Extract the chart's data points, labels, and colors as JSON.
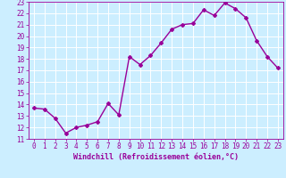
{
  "x": [
    0,
    1,
    2,
    3,
    4,
    5,
    6,
    7,
    8,
    9,
    10,
    11,
    12,
    13,
    14,
    15,
    16,
    17,
    18,
    19,
    20,
    21,
    22,
    23
  ],
  "y": [
    13.7,
    13.6,
    12.8,
    11.5,
    12.0,
    12.2,
    12.5,
    14.1,
    13.1,
    18.2,
    17.5,
    18.3,
    19.4,
    20.6,
    21.0,
    21.1,
    22.3,
    21.8,
    22.9,
    22.4,
    21.6,
    19.6,
    18.2,
    17.2
  ],
  "xlim": [
    -0.5,
    23.5
  ],
  "ylim": [
    11,
    23
  ],
  "yticks": [
    11,
    12,
    13,
    14,
    15,
    16,
    17,
    18,
    19,
    20,
    21,
    22,
    23
  ],
  "xticks": [
    0,
    1,
    2,
    3,
    4,
    5,
    6,
    7,
    8,
    9,
    10,
    11,
    12,
    13,
    14,
    15,
    16,
    17,
    18,
    19,
    20,
    21,
    22,
    23
  ],
  "line_color": "#990099",
  "marker": "D",
  "marker_size": 2.0,
  "bg_color": "#cceeff",
  "grid_color": "#ffffff",
  "tick_color": "#990099",
  "xlabel": "Windchill (Refroidissement éolien,°C)",
  "xlabel_fontsize": 6.0,
  "tick_fontsize": 5.5,
  "line_width": 1.0
}
